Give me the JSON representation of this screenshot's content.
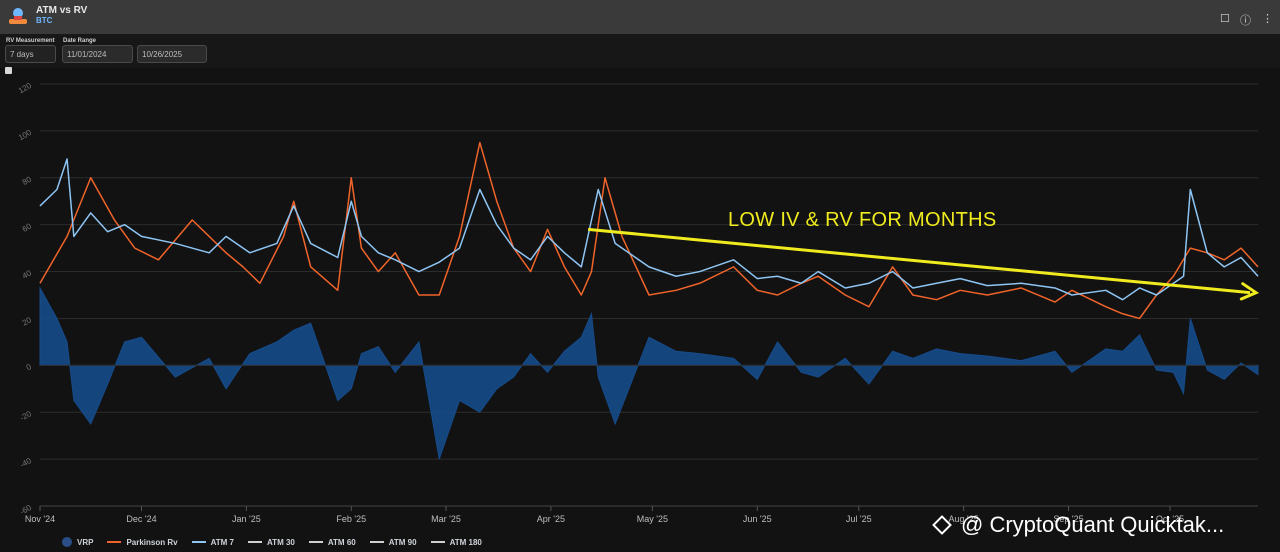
{
  "header": {
    "title": "ATM vs RV",
    "subtitle": "BTC"
  },
  "controls": {
    "rv_label": "RV Measurement",
    "rv_value": "7 days",
    "range_label": "Date Range",
    "range_start": "11/01/2024",
    "range_end": "10/26/2025"
  },
  "annotation": "LOW IV & RV FOR MONTHS",
  "watermark": "@ CryptoQuant Quicktak...",
  "colors": {
    "vrp": "#164b8a",
    "parkinson": "#f0642a",
    "atm7": "#8ec5f4",
    "atm_other": "#d0d0d0",
    "arrow": "#f0eb1e",
    "grid": "#2c2c2c"
  },
  "chart_data": {
    "type": "area",
    "ylim": [
      -60,
      120
    ],
    "yticks": [
      120,
      100,
      80,
      60,
      40,
      20,
      0,
      -20,
      -40,
      -60
    ],
    "x_labels": [
      "Nov '24",
      "Dec '24",
      "Jan '25",
      "Feb '25",
      "Mar '25",
      "Apr '25",
      "May '25",
      "Jun '25",
      "Jul '25",
      "Aug '25",
      "Sep '25",
      "Oct '25"
    ],
    "x_index_range": [
      0,
      360
    ],
    "x_label_positions": [
      0,
      30,
      61,
      92,
      120,
      151,
      181,
      212,
      242,
      273,
      304,
      334
    ],
    "series": [
      {
        "name": "Parkinson Rv",
        "x": [
          0,
          8,
          15,
          22,
          28,
          35,
          45,
          55,
          60,
          65,
          72,
          75,
          80,
          88,
          92,
          95,
          100,
          105,
          112,
          118,
          124,
          130,
          135,
          140,
          145,
          150,
          155,
          160,
          163,
          167,
          172,
          180,
          188,
          195,
          205,
          212,
          218,
          225,
          230,
          238,
          245,
          252,
          258,
          265,
          272,
          280,
          290,
          300,
          305,
          315,
          320,
          325,
          330,
          335,
          340,
          345,
          350,
          355,
          360
        ],
        "values": [
          35,
          55,
          80,
          62,
          50,
          45,
          62,
          48,
          42,
          35,
          55,
          70,
          42,
          32,
          80,
          50,
          40,
          48,
          30,
          30,
          55,
          95,
          70,
          50,
          40,
          58,
          42,
          30,
          40,
          80,
          55,
          30,
          32,
          35,
          42,
          32,
          30,
          35,
          38,
          30,
          25,
          42,
          30,
          28,
          32,
          30,
          33,
          27,
          32,
          25,
          22,
          20,
          30,
          38,
          50,
          48,
          45,
          50,
          42
        ]
      },
      {
        "name": "ATM 7",
        "x": [
          0,
          5,
          8,
          10,
          15,
          20,
          25,
          30,
          40,
          50,
          55,
          62,
          70,
          75,
          80,
          88,
          92,
          95,
          100,
          105,
          112,
          118,
          124,
          130,
          135,
          140,
          145,
          150,
          155,
          160,
          163,
          165,
          170,
          180,
          188,
          195,
          205,
          212,
          218,
          225,
          230,
          238,
          245,
          252,
          258,
          265,
          272,
          280,
          290,
          300,
          305,
          315,
          320,
          325,
          330,
          335,
          338,
          340,
          345,
          350,
          355,
          360
        ],
        "values": [
          68,
          75,
          88,
          55,
          65,
          57,
          60,
          55,
          52,
          48,
          55,
          48,
          52,
          68,
          52,
          46,
          70,
          55,
          48,
          45,
          40,
          44,
          50,
          75,
          60,
          50,
          45,
          55,
          48,
          42,
          62,
          75,
          52,
          42,
          38,
          40,
          45,
          37,
          38,
          35,
          40,
          33,
          35,
          40,
          33,
          35,
          37,
          34,
          35,
          33,
          30,
          32,
          28,
          33,
          30,
          35,
          38,
          75,
          48,
          42,
          46,
          38
        ]
      },
      {
        "name": "VRP",
        "x": [
          0,
          5,
          8,
          10,
          15,
          20,
          25,
          30,
          40,
          50,
          55,
          62,
          70,
          75,
          80,
          88,
          92,
          95,
          100,
          105,
          112,
          118,
          124,
          130,
          135,
          140,
          145,
          150,
          155,
          160,
          163,
          165,
          170,
          180,
          188,
          195,
          205,
          212,
          218,
          225,
          230,
          238,
          245,
          252,
          258,
          265,
          272,
          280,
          290,
          300,
          305,
          315,
          320,
          325,
          330,
          335,
          338,
          340,
          345,
          350,
          355,
          360
        ],
        "values": [
          33,
          20,
          10,
          -15,
          -25,
          -8,
          10,
          12,
          -5,
          3,
          -10,
          5,
          10,
          15,
          18,
          -15,
          -10,
          5,
          8,
          -3,
          10,
          -40,
          -15,
          -20,
          -10,
          -5,
          5,
          -3,
          6,
          12,
          22,
          -5,
          -25,
          12,
          6,
          5,
          3,
          -6,
          10,
          -3,
          -5,
          3,
          -8,
          6,
          3,
          7,
          5,
          4,
          2,
          6,
          -3,
          7,
          6,
          13,
          -2,
          -3,
          -12,
          20,
          -2,
          -6,
          1,
          -4
        ]
      }
    ]
  },
  "legend": [
    {
      "label": "VRP",
      "kind": "dot",
      "color": "#2a4f86"
    },
    {
      "label": "Parkinson Rv",
      "kind": "line",
      "color": "#f0642a"
    },
    {
      "label": "ATM 7",
      "kind": "line",
      "color": "#8ec5f4"
    },
    {
      "label": "ATM 30",
      "kind": "line",
      "color": "#d0d0d0"
    },
    {
      "label": "ATM 60",
      "kind": "line",
      "color": "#d0d0d0"
    },
    {
      "label": "ATM 90",
      "kind": "line",
      "color": "#d0d0d0"
    },
    {
      "label": "ATM 180",
      "kind": "line",
      "color": "#d0d0d0"
    }
  ]
}
